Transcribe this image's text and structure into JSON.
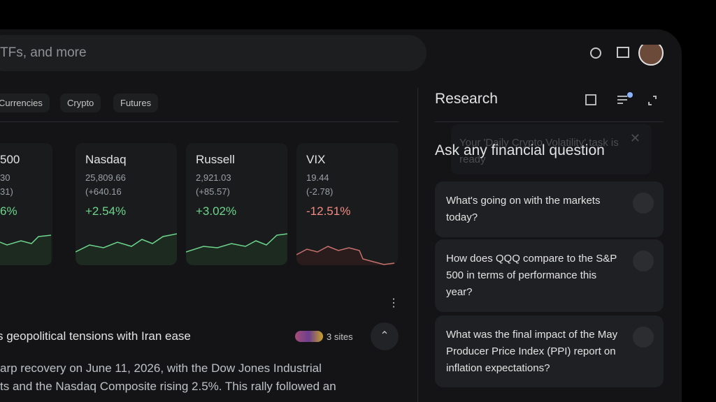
{
  "search": {
    "placeholder": "TFs, and more"
  },
  "tabs": [
    "Currencies",
    "Crypto",
    "Futures"
  ],
  "cards": [
    {
      "name": "500",
      "price": "30",
      "change": "31)",
      "percent": "6%"
    },
    {
      "name": "Nasdaq",
      "price": "25,809.66",
      "change": "(+640.16",
      "percent": "+2.54%"
    },
    {
      "name": "Russell",
      "price": "2,921.03",
      "change": "(+85.57)",
      "percent": "+3.02%"
    },
    {
      "name": "VIX",
      "price": "19.44",
      "change": "(-2.78)",
      "percent": "-12.51%"
    }
  ],
  "news": {
    "headline": "s geopolitical tensions with Iran ease",
    "sources": "3 sites",
    "body": [
      "arp recovery on June 11, 2026, with the Dow Jones Industrial",
      "ts and the Nasdaq Composite rising 2.5%. This rally followed an"
    ]
  },
  "research": {
    "title": "Research",
    "toast": "Your 'Daily Crypto Volatility' task is ready",
    "heading": "Ask any financial question",
    "suggestions": [
      "What's going on with the markets today?",
      "How does QQQ compare to the S&P 500 in terms of performance this year?",
      "What was the final impact of the May Producer Price Index (PPI) report on inflation expectations?"
    ]
  }
}
